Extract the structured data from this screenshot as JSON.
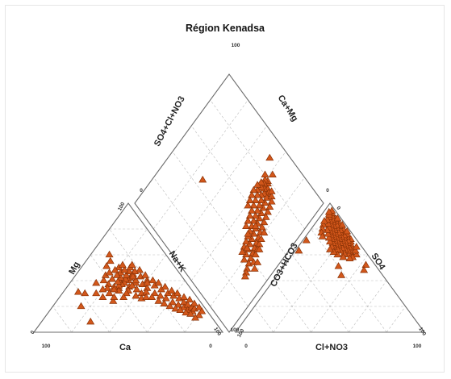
{
  "chart_data": {
    "type": "scatter",
    "subtype": "piper-diagram",
    "title": "Région Kenadsa",
    "cation_triangle": {
      "axes": [
        "Mg",
        "Na+K",
        "Ca"
      ],
      "corner_ticks": {
        "top": "100",
        "left": "0",
        "right": "100",
        "bottom_left": "100",
        "bottom_right": "0"
      },
      "points_ca_mg_nak": [
        [
          30,
          40,
          30
        ],
        [
          28,
          42,
          30
        ],
        [
          33,
          38,
          29
        ],
        [
          25,
          45,
          30
        ],
        [
          32,
          35,
          33
        ],
        [
          27,
          38,
          35
        ],
        [
          35,
          37,
          28
        ],
        [
          30,
          36,
          34
        ],
        [
          22,
          43,
          35
        ],
        [
          38,
          34,
          28
        ],
        [
          26,
          40,
          34
        ],
        [
          31,
          41,
          28
        ],
        [
          29,
          33,
          38
        ],
        [
          24,
          37,
          39
        ],
        [
          34,
          32,
          34
        ],
        [
          20,
          40,
          40
        ],
        [
          36,
          30,
          34
        ],
        [
          28,
          30,
          42
        ],
        [
          23,
          34,
          43
        ],
        [
          32,
          28,
          40
        ],
        [
          25,
          31,
          44
        ],
        [
          18,
          36,
          46
        ],
        [
          30,
          26,
          44
        ],
        [
          21,
          30,
          49
        ],
        [
          27,
          27,
          46
        ],
        [
          16,
          33,
          51
        ],
        [
          24,
          27,
          49
        ],
        [
          19,
          28,
          53
        ],
        [
          14,
          30,
          56
        ],
        [
          22,
          24,
          54
        ],
        [
          17,
          26,
          57
        ],
        [
          12,
          28,
          60
        ],
        [
          20,
          22,
          58
        ],
        [
          15,
          23,
          62
        ],
        [
          10,
          26,
          64
        ],
        [
          18,
          20,
          62
        ],
        [
          13,
          21,
          66
        ],
        [
          9,
          23,
          68
        ],
        [
          16,
          18,
          66
        ],
        [
          11,
          19,
          70
        ],
        [
          8,
          21,
          71
        ],
        [
          14,
          17,
          69
        ],
        [
          10,
          17,
          73
        ],
        [
          7,
          19,
          74
        ],
        [
          12,
          15,
          73
        ],
        [
          8,
          16,
          76
        ],
        [
          6,
          18,
          76
        ],
        [
          10,
          14,
          76
        ],
        [
          35,
          40,
          25
        ],
        [
          37,
          36,
          27
        ],
        [
          40,
          35,
          25
        ],
        [
          33,
          42,
          25
        ],
        [
          29,
          44,
          27
        ],
        [
          31,
          46,
          23
        ],
        [
          26,
          47,
          27
        ],
        [
          38,
          41,
          21
        ],
        [
          42,
          37,
          21
        ],
        [
          34,
          44,
          22
        ],
        [
          24,
          50,
          26
        ],
        [
          28,
          48,
          24
        ],
        [
          36,
          39,
          25
        ],
        [
          39,
          32,
          29
        ],
        [
          41,
          33,
          26
        ],
        [
          44,
          34,
          22
        ],
        [
          30,
          50,
          20
        ],
        [
          27,
          52,
          21
        ],
        [
          22,
          52,
          26
        ],
        [
          20,
          48,
          32
        ],
        [
          23,
          47,
          30
        ],
        [
          26,
          43,
          31
        ],
        [
          19,
          44,
          37
        ],
        [
          21,
          38,
          41
        ],
        [
          17,
          40,
          43
        ],
        [
          15,
          38,
          47
        ],
        [
          13,
          35,
          52
        ],
        [
          11,
          32,
          57
        ],
        [
          9,
          30,
          61
        ],
        [
          7,
          27,
          66
        ],
        [
          5,
          25,
          70
        ],
        [
          4,
          22,
          74
        ],
        [
          3,
          19,
          78
        ],
        [
          6,
          13,
          81
        ],
        [
          9,
          11,
          80
        ],
        [
          3,
          16,
          81
        ],
        [
          45,
          30,
          25
        ],
        [
          47,
          33,
          20
        ],
        [
          43,
          40,
          17
        ],
        [
          40,
          44,
          16
        ],
        [
          37,
          46,
          17
        ],
        [
          33,
          48,
          19
        ],
        [
          48,
          38,
          14
        ],
        [
          32,
          55,
          13
        ],
        [
          36,
          51,
          13
        ],
        [
          30,
          60,
          10
        ],
        [
          50,
          27,
          23
        ],
        [
          52,
          30,
          18
        ],
        [
          46,
          24,
          30
        ],
        [
          44,
          27,
          29
        ],
        [
          39,
          27,
          34
        ],
        [
          58,
          30,
          12
        ],
        [
          65,
          20,
          15
        ],
        [
          61,
          31,
          8
        ],
        [
          66,
          8,
          26
        ]
      ]
    },
    "anion_triangle": {
      "axes": [
        "CO3+HCO3",
        "SO4",
        "Cl+NO3"
      ],
      "corner_ticks": {
        "top": "0",
        "left": "100",
        "right": "100",
        "bottom_left": "0",
        "bottom_right": "100"
      },
      "points_hco3_so4_cl": [
        [
          8,
          62,
          30
        ],
        [
          6,
          65,
          29
        ],
        [
          10,
          60,
          30
        ],
        [
          5,
          68,
          27
        ],
        [
          7,
          66,
          27
        ],
        [
          9,
          63,
          28
        ],
        [
          4,
          70,
          26
        ],
        [
          6,
          69,
          25
        ],
        [
          8,
          67,
          25
        ],
        [
          10,
          64,
          26
        ],
        [
          12,
          61,
          27
        ],
        [
          3,
          72,
          25
        ],
        [
          5,
          71,
          24
        ],
        [
          7,
          70,
          23
        ],
        [
          9,
          68,
          23
        ],
        [
          11,
          65,
          24
        ],
        [
          13,
          63,
          24
        ],
        [
          4,
          74,
          22
        ],
        [
          6,
          73,
          21
        ],
        [
          8,
          71,
          21
        ],
        [
          10,
          69,
          21
        ],
        [
          12,
          67,
          21
        ],
        [
          14,
          64,
          22
        ],
        [
          3,
          76,
          21
        ],
        [
          5,
          75,
          20
        ],
        [
          7,
          74,
          19
        ],
        [
          9,
          72,
          19
        ],
        [
          11,
          70,
          19
        ],
        [
          13,
          68,
          19
        ],
        [
          15,
          66,
          19
        ],
        [
          4,
          78,
          18
        ],
        [
          6,
          77,
          17
        ],
        [
          8,
          75,
          17
        ],
        [
          10,
          73,
          17
        ],
        [
          12,
          71,
          17
        ],
        [
          14,
          69,
          17
        ],
        [
          16,
          66,
          18
        ],
        [
          3,
          80,
          17
        ],
        [
          5,
          79,
          16
        ],
        [
          7,
          77,
          16
        ],
        [
          9,
          76,
          15
        ],
        [
          11,
          74,
          15
        ],
        [
          13,
          72,
          15
        ],
        [
          15,
          70,
          15
        ],
        [
          4,
          82,
          14
        ],
        [
          6,
          81,
          13
        ],
        [
          8,
          79,
          13
        ],
        [
          10,
          77,
          13
        ],
        [
          12,
          75,
          13
        ],
        [
          14,
          73,
          13
        ],
        [
          3,
          84,
          13
        ],
        [
          5,
          83,
          12
        ],
        [
          7,
          82,
          11
        ],
        [
          9,
          80,
          11
        ],
        [
          11,
          78,
          11
        ],
        [
          13,
          76,
          11
        ],
        [
          4,
          86,
          10
        ],
        [
          6,
          85,
          9
        ],
        [
          8,
          83,
          9
        ],
        [
          10,
          81,
          9
        ],
        [
          12,
          79,
          9
        ],
        [
          3,
          88,
          9
        ],
        [
          5,
          87,
          8
        ],
        [
          7,
          86,
          7
        ],
        [
          9,
          84,
          7
        ],
        [
          4,
          90,
          6
        ],
        [
          6,
          89,
          5
        ],
        [
          8,
          87,
          5
        ],
        [
          3,
          92,
          5
        ],
        [
          5,
          91,
          4
        ],
        [
          2,
          94,
          4
        ],
        [
          4,
          93,
          3
        ],
        [
          6,
          60,
          34
        ],
        [
          9,
          58,
          33
        ],
        [
          5,
          63,
          32
        ],
        [
          11,
          57,
          32
        ],
        [
          3,
          66,
          31
        ],
        [
          14,
          58,
          28
        ],
        [
          16,
          60,
          24
        ],
        [
          17,
          62,
          21
        ],
        [
          18,
          64,
          18
        ],
        [
          2,
          78,
          20
        ],
        [
          2,
          83,
          15
        ],
        [
          2,
          88,
          10
        ],
        [
          12,
          83,
          5
        ],
        [
          14,
          80,
          6
        ],
        [
          16,
          77,
          7
        ],
        [
          10,
          86,
          4
        ],
        [
          17,
          74,
          9
        ],
        [
          20,
          51,
          29
        ],
        [
          22,
          44,
          34
        ],
        [
          5,
          52,
          43
        ],
        [
          8,
          48,
          44
        ],
        [
          27,
          71,
          2
        ],
        [
          35,
          63,
          2
        ]
      ]
    },
    "diamond": {
      "axes": [
        "SO4+Cl+NO3",
        "Ca+Mg"
      ],
      "corner_ticks": {
        "top": "100",
        "left": "0",
        "right": "0",
        "bottom": "100"
      },
      "points_caMg_so4Cl": [
        [
          64,
          75
        ],
        [
          63,
          78
        ],
        [
          65,
          76
        ],
        [
          66,
          73
        ],
        [
          62,
          79
        ],
        [
          60,
          78
        ],
        [
          61,
          76
        ],
        [
          63,
          74
        ],
        [
          67,
          75
        ],
        [
          65,
          72
        ],
        [
          61,
          73
        ],
        [
          59,
          75
        ],
        [
          68,
          72
        ],
        [
          64,
          70
        ],
        [
          60,
          70
        ],
        [
          58,
          72
        ],
        [
          69,
          69
        ],
        [
          66,
          68
        ],
        [
          62,
          68
        ],
        [
          58,
          68
        ],
        [
          70,
          66
        ],
        [
          67,
          65
        ],
        [
          63,
          65
        ],
        [
          59,
          65
        ],
        [
          71,
          63
        ],
        [
          68,
          62
        ],
        [
          64,
          62
        ],
        [
          60,
          62
        ],
        [
          72,
          60
        ],
        [
          69,
          59
        ],
        [
          65,
          59
        ],
        [
          61,
          59
        ],
        [
          73,
          57
        ],
        [
          70,
          56
        ],
        [
          66,
          56
        ],
        [
          74,
          54
        ],
        [
          71,
          53
        ],
        [
          67,
          53
        ],
        [
          75,
          51
        ],
        [
          72,
          50
        ],
        [
          68,
          50
        ],
        [
          76,
          48
        ],
        [
          73,
          47
        ],
        [
          77,
          45
        ],
        [
          74,
          44
        ],
        [
          78,
          42
        ],
        [
          75,
          41
        ],
        [
          79,
          39
        ],
        [
          76,
          38
        ],
        [
          80,
          36
        ],
        [
          70,
          75
        ],
        [
          72,
          73
        ],
        [
          68,
          77
        ],
        [
          73,
          70
        ],
        [
          74,
          67
        ],
        [
          75,
          64
        ],
        [
          76,
          61
        ],
        [
          77,
          58
        ],
        [
          78,
          55
        ],
        [
          79,
          52
        ],
        [
          80,
          49
        ],
        [
          81,
          46
        ],
        [
          82,
          43
        ],
        [
          83,
          40
        ],
        [
          84,
          37
        ],
        [
          85,
          34
        ],
        [
          82,
          50
        ],
        [
          83,
          47
        ],
        [
          62,
          84
        ],
        [
          58,
          80
        ],
        [
          73,
          55
        ],
        [
          77,
          42
        ],
        [
          72,
          48
        ],
        [
          84,
          48
        ],
        [
          86,
          40
        ],
        [
          80,
          57
        ],
        [
          81,
          53
        ],
        [
          84,
          44
        ],
        [
          86,
          32
        ],
        [
          87,
          30
        ],
        [
          88,
          42
        ],
        [
          89,
          38
        ],
        [
          54,
          89
        ],
        [
          27,
          45
        ]
      ]
    }
  }
}
